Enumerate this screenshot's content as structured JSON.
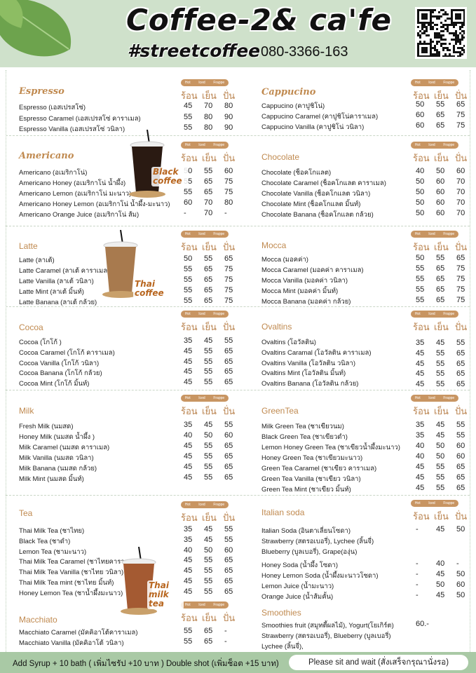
{
  "header": {
    "title": "Coffee-2& ca'fe",
    "hashtag": "#streetcoffee",
    "phone": "080-3366-163"
  },
  "colors": {
    "header_bg": "#cfe1cb",
    "accent": "#c89562",
    "heading": "#c08a50",
    "footer_bg": "#a9c9a5"
  },
  "pill_labels": [
    "Hot",
    "Iced",
    "Frappe"
  ],
  "thai_labels": [
    "ร้อน",
    "เย็น",
    "ปั่น"
  ],
  "cup_labels": {
    "black": "Black coffee",
    "thai": "Thai coffee",
    "milktea": "Thai milk tea"
  },
  "sections": [
    {
      "title": "Espresso",
      "rows": [
        [
          "Espresso (เอสเปรสโซ่)",
          [
            "45",
            "70",
            "80"
          ]
        ],
        [
          "Espresso Caramel (เอสเปรสโซ่ คาราเมล)",
          [
            "55",
            "80",
            "90"
          ]
        ],
        [
          "Espresso  Vanilla (เอสเปรสโซ่ วนิลา)",
          [
            "55",
            "80",
            "90"
          ]
        ]
      ]
    },
    {
      "title": "Cappucino",
      "rows": [
        [
          "Cappucino (คาปูชิโน่)",
          [
            "50",
            "55",
            "65"
          ]
        ],
        [
          "Cappucino Caramel (คาปูชิโน่คาราเมล)",
          [
            "60",
            "65",
            "75"
          ]
        ],
        [
          "Cappucino Vanilla (คาปูชิโน่ วนิลา)",
          [
            "60",
            "65",
            "75"
          ]
        ]
      ]
    },
    {
      "title": "Americano",
      "rows": [
        [
          "Americano (อเมริกาโน่)",
          [
            "50",
            "55",
            "60"
          ]
        ],
        [
          "Americano  Honey (อเมริกาโน่ น้ำผึ้ง)",
          [
            "55",
            "65",
            "75"
          ]
        ],
        [
          "Americano  Lemon (อเมริกาโน่ มะนาว)",
          [
            "55",
            "65",
            "75"
          ]
        ],
        [
          "Americano  Honey Lemon (อเมริกาโน่ น้ำผึ้ง-มะนาว)",
          [
            "60",
            "70",
            "80"
          ]
        ],
        [
          "Americano Orange Juice (อเมริกาโน่ ส้ม)",
          [
            "-",
            "70",
            "-"
          ]
        ]
      ]
    },
    {
      "title": "Chocolate",
      "rows": [
        [
          "Chocolate (ช็อคโกแลต)",
          [
            "40",
            "50",
            "60"
          ]
        ],
        [
          "Chocolate Caramel (ช็อคโกแลต คาราเมล)",
          [
            "50",
            "60",
            "70"
          ]
        ],
        [
          "Chocolate Vanilla (ช็อคโกแลต วนิลา)",
          [
            "50",
            "60",
            "70"
          ]
        ],
        [
          "Chocolate Mint (ช็อคโกแลต มิ้นท์)",
          [
            "50",
            "60",
            "70"
          ]
        ],
        [
          "Chocolate Banana (ช็อคโกแลต กล้วย)",
          [
            "50",
            "60",
            "70"
          ]
        ]
      ]
    },
    {
      "title": "Latte",
      "rows": [
        [
          "Latte (ลาเต้)",
          [
            "50",
            "55",
            "65"
          ]
        ],
        [
          "Latte Caramel (ลาเต้ คาราเมล)",
          [
            "55",
            "65",
            "75"
          ]
        ],
        [
          "Latte Vanilla (ลาเต้ วนิลา)",
          [
            "55",
            "65",
            "75"
          ]
        ],
        [
          "Latte Mint  (ลาเต้ มิ้นท์)",
          [
            "55",
            "65",
            "75"
          ]
        ],
        [
          "Latte Banana (ลาเต้ กล้วย)",
          [
            "55",
            "65",
            "75"
          ]
        ]
      ]
    },
    {
      "title": "Mocca",
      "rows": [
        [
          "Mocca (มอคค่า)",
          [
            "50",
            "55",
            "65"
          ]
        ],
        [
          "Mocca Caramel (มอคค่า คาราเมล)",
          [
            "55",
            "65",
            "75"
          ]
        ],
        [
          "Mocca Vanilla (มอคค่า วนิลา)",
          [
            "55",
            "65",
            "75"
          ]
        ],
        [
          "Mocca Mint (มอคค่า มิ้นท์)",
          [
            "55",
            "65",
            "75"
          ]
        ],
        [
          "Mocca Banana (มอคค่า กล้วย)",
          [
            "55",
            "65",
            "75"
          ]
        ]
      ]
    },
    {
      "title": "Cocoa",
      "rows": [
        [
          "Cocoa (โกโก้ )",
          [
            "35",
            "45",
            "55"
          ]
        ],
        [
          "Cocoa Caramel (โกโก้ คาราเมล)",
          [
            "45",
            "55",
            "65"
          ]
        ],
        [
          "Cocoa Vanilla (โกโก้ วนิลา)",
          [
            "45",
            "55",
            "65"
          ]
        ],
        [
          "Cocoa Banana (โกโก้ กล้วย)",
          [
            "45",
            "55",
            "65"
          ]
        ],
        [
          "Cocoa Mint (โกโก้ มิ้นท์)",
          [
            "45",
            "55",
            "65"
          ]
        ]
      ]
    },
    {
      "title": "Ovaltins",
      "rows": [
        [
          "Ovaltins (โอวัลติน)",
          [
            "35",
            "45",
            "55"
          ]
        ],
        [
          "Ovaltins Caramal (โอวัลติน คาราเมล)",
          [
            "45",
            "55",
            "65"
          ]
        ],
        [
          "Ovaltins Vanilla (โอวัลติน วนิลา)",
          [
            "45",
            "55",
            "65"
          ]
        ],
        [
          "Ovaltins Mint (โอวัลติน มิ้นท์)",
          [
            "45",
            "55",
            "65"
          ]
        ],
        [
          "Ovaltins Banana (โอวัลติน กล้วย)",
          [
            "45",
            "55",
            "65"
          ]
        ]
      ]
    },
    {
      "title": "Milk",
      "rows": [
        [
          "Fresh Milk (นมสด)",
          [
            "35",
            "45",
            "55"
          ]
        ],
        [
          "Honey Milk (นมสด น้ำผึ้ง )",
          [
            "40",
            "50",
            "60"
          ]
        ],
        [
          "Milk Caramel (นมสด คาราเมล)",
          [
            "45",
            "55",
            "65"
          ]
        ],
        [
          "Milk Vanilla (นมสด วนิลา)",
          [
            "45",
            "55",
            "65"
          ]
        ],
        [
          "Milk Banana (นมสด กล้วย)",
          [
            "45",
            "55",
            "65"
          ]
        ],
        [
          "Milk Mint (นมสด มิ้นท์)",
          [
            "45",
            "55",
            "65"
          ]
        ]
      ]
    },
    {
      "title": "GreenTea",
      "rows": [
        [
          "Milk Green Tea  (ชาเขียวนม)",
          [
            "35",
            "45",
            "55"
          ]
        ],
        [
          "Black Green Tea (ชาเขียวดำ)",
          [
            "35",
            "45",
            "55"
          ]
        ],
        [
          "Lemon Honey Green Tea (ชาเขียวน้ำผึ้งมะนาว)",
          [
            "40",
            "50",
            "60"
          ]
        ],
        [
          "Honey Green Tea  (ชาเขียวมะนาว)",
          [
            "40",
            "50",
            "60"
          ]
        ],
        [
          "Green Tea  Caramel (ชาเขียว คาราเมล)",
          [
            "45",
            "55",
            "65"
          ]
        ],
        [
          "Green Tea Vanilla (ชาเขียว วนิลา)",
          [
            "45",
            "55",
            "65"
          ]
        ],
        [
          "Green Tea Mint (ชาเขียว มิ้นท์)",
          [
            "45",
            "55",
            "65"
          ]
        ]
      ]
    },
    {
      "title": "Tea",
      "rows": [
        [
          "Thai Milk Tea (ชาไทย)",
          [
            "35",
            "45",
            "55"
          ]
        ],
        [
          "Black Tea (ชาดำ)",
          [
            "35",
            "45",
            "55"
          ]
        ],
        [
          "Lemon Tea (ชามะนาว)",
          [
            "40",
            "50",
            "60"
          ]
        ],
        [
          "Thai Milk Tea Caramel (ชาไทยคาราเมล)",
          [
            "45",
            "55",
            "65"
          ]
        ],
        [
          "Thai Milk Tea Vanilla (ชาไทย วนิลา)",
          [
            "45",
            "55",
            "65"
          ]
        ],
        [
          "Thai Milk Tea mint (ชาไทย มิ้นท์)",
          [
            "45",
            "55",
            "65"
          ]
        ],
        [
          "Honey Lemon Tea (ชาน้ำผึ้งมะนาว)",
          [
            "45",
            "55",
            "65"
          ]
        ]
      ]
    },
    {
      "title": "Italian soda",
      "rows": [
        [
          "Italian Soda (อินตาเลี่ยนโซดา)",
          [
            "-",
            "45",
            "50"
          ]
        ],
        [
          "Strawberry (สตรอเบอรี่), Lychee (ลิ้นจี่)",
          []
        ],
        [
          "Blueberry (บูลเบอรี่), Grape(องุ่น)",
          []
        ],
        [
          "Honey Soda (น้ำผึ้ง โซดา)",
          [
            "-",
            "40",
            "-"
          ]
        ],
        [
          "Honey Lemon Soda (น้ำผึ้งมะนาวโซดา)",
          [
            "-",
            "45",
            "50"
          ]
        ],
        [
          "Lemon  Juice  (น้ำมะนาว)",
          [
            "-",
            "50",
            "60"
          ]
        ],
        [
          "Orange Juice  (น้ำส้มคั้น)",
          [
            "-",
            "45",
            "50"
          ]
        ]
      ]
    },
    {
      "title": "Macchiato",
      "rows": [
        [
          "Macchiato Caramel (มัคคิอาโต้คาราเมล)",
          [
            "55",
            "65",
            "-"
          ]
        ],
        [
          "Macchiato Vanilla (มัคคิอาโต้ วนิลา)",
          [
            "55",
            "65",
            "-"
          ]
        ]
      ]
    },
    {
      "title": "Smoothies",
      "rows": [
        [
          "Smoothies fruit (สมูทตี้ผลไม้), Yogurt(โยเกิร์ต)",
          [
            "60.-"
          ]
        ],
        [
          "Strawberry (สตรอเบอรี่), Blueberry (บูลเบอรี่)",
          []
        ],
        [
          "Lychee (ลิ้นจี่),",
          []
        ]
      ]
    }
  ],
  "footer": {
    "extras": "Add Syrup + 10 bath ( เพิ่มไซรัป +10 บาท )   Double shot (เพิ่มช็อต +15 บาท)",
    "notice": "Please sit and wait (สั่งเสร็จกรุณานั่งรอ)"
  }
}
